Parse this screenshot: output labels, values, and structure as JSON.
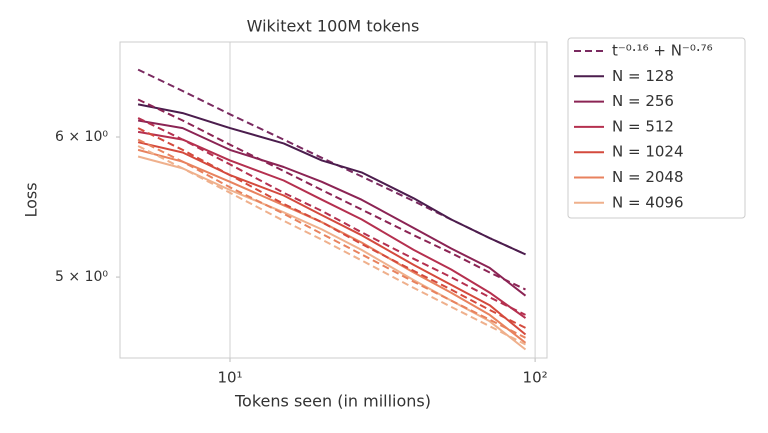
{
  "chart_data": {
    "type": "line",
    "title": "Wikitext 100M tokens",
    "x_label": "Tokens seen (in millions)",
    "y_label": "Loss",
    "xscale": "log",
    "yscale": "log",
    "grid": "x",
    "legend": "outside-right",
    "x": [
      5,
      7,
      10,
      15,
      20,
      27,
      40,
      53,
      71,
      93
    ],
    "xlim": [
      4.36,
      109.4
    ],
    "xticks": [
      {
        "value": 10,
        "label": "10¹"
      },
      {
        "value": 100,
        "label": "10²"
      }
    ],
    "ylim": [
      4.5,
      6.79
    ],
    "yticks": [
      {
        "value": 5,
        "label": "5 × 10⁰"
      },
      {
        "value": 6,
        "label": "6 × 10⁰"
      }
    ],
    "series": [
      {
        "name": "t⁻⁰·¹⁶ + N⁻⁰·⁷⁶",
        "color": "#7a2a60",
        "dash": true,
        "values": [
          6.55,
          6.37,
          6.18,
          5.98,
          5.84,
          5.7,
          5.52,
          5.39,
          5.26,
          5.15
        ]
      },
      {
        "name": "N = 128",
        "color": "#4b1d4d",
        "dash": false,
        "values": [
          6.26,
          6.19,
          6.07,
          5.95,
          5.82,
          5.73,
          5.54,
          5.39,
          5.26,
          5.15
        ]
      },
      {
        "name": "N = 256",
        "color": "#8b2454",
        "dash": false,
        "values": [
          6.13,
          6.07,
          5.9,
          5.77,
          5.66,
          5.53,
          5.33,
          5.19,
          5.06,
          4.88
        ]
      },
      {
        "name": "N = 512",
        "color": "#b5304f",
        "dash": false,
        "values": [
          6.04,
          5.98,
          5.82,
          5.67,
          5.53,
          5.39,
          5.18,
          5.05,
          4.9,
          4.74
        ]
      },
      {
        "name": "N = 1024",
        "color": "#d44a3d",
        "dash": false,
        "values": [
          5.96,
          5.88,
          5.71,
          5.56,
          5.42,
          5.28,
          5.08,
          4.95,
          4.82,
          4.64
        ]
      },
      {
        "name": "N = 2048",
        "color": "#e8825e",
        "dash": false,
        "values": [
          5.9,
          5.81,
          5.66,
          5.49,
          5.37,
          5.23,
          5.03,
          4.9,
          4.76,
          4.59
        ]
      },
      {
        "name": "N = 4096",
        "color": "#efb08c",
        "dash": false,
        "values": [
          5.85,
          5.76,
          5.6,
          5.44,
          5.32,
          5.18,
          4.98,
          4.85,
          4.72,
          4.55
        ]
      },
      {
        "color": "#8b2454",
        "dash": true,
        "values": [
          6.3,
          6.13,
          5.94,
          5.74,
          5.6,
          5.46,
          5.28,
          5.16,
          5.03,
          4.92
        ]
      },
      {
        "color": "#b5304f",
        "dash": true,
        "values": [
          6.15,
          5.98,
          5.79,
          5.58,
          5.45,
          5.3,
          5.12,
          5.0,
          4.87,
          4.76
        ]
      },
      {
        "color": "#d44a3d",
        "dash": true,
        "values": [
          6.07,
          5.9,
          5.71,
          5.5,
          5.37,
          5.22,
          5.04,
          4.92,
          4.79,
          4.68
        ]
      },
      {
        "color": "#e8825e",
        "dash": true,
        "values": [
          5.98,
          5.81,
          5.62,
          5.43,
          5.29,
          5.15,
          4.97,
          4.85,
          4.73,
          4.62
        ]
      },
      {
        "color": "#efb08c",
        "dash": true,
        "values": [
          5.93,
          5.76,
          5.58,
          5.38,
          5.25,
          5.11,
          4.93,
          4.81,
          4.69,
          4.58
        ]
      }
    ]
  }
}
